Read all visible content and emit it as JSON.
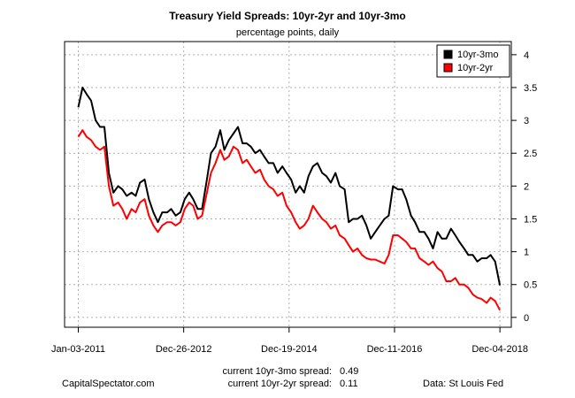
{
  "chart_data": {
    "type": "line",
    "title": "Treasury Yield Spreads: 10yr-2yr and 10yr-3mo",
    "subtitle": "percentage points, daily",
    "xlabel": "",
    "ylabel": "",
    "x_tick_labels": [
      "Jan-03-2011",
      "Dec-26-2012",
      "Dec-19-2014",
      "Dec-11-2016",
      "Dec-04-2018"
    ],
    "y_ticks": [
      0,
      0.5,
      1,
      1.5,
      2,
      2.5,
      3,
      3.5,
      4
    ],
    "y_tick_labels": [
      "0",
      "0.5",
      "1",
      "1.5",
      "2",
      "2.5",
      "3",
      "3.5",
      "4"
    ],
    "xlim": [
      "2010-10-01",
      "2019-02-20"
    ],
    "ylim": [
      -0.15,
      4.2
    ],
    "y_axis_side": "right",
    "grid": true,
    "legend_position": "top-right",
    "series": [
      {
        "name": "10yr-3mo",
        "color": "#000000",
        "x": [
          "2011-01-03",
          "2011-02-01",
          "2011-03-01",
          "2011-04-01",
          "2011-05-02",
          "2011-06-01",
          "2011-07-01",
          "2011-08-01",
          "2011-09-01",
          "2011-10-03",
          "2011-11-01",
          "2011-12-01",
          "2012-01-03",
          "2012-02-01",
          "2012-03-01",
          "2012-04-02",
          "2012-05-01",
          "2012-06-01",
          "2012-07-02",
          "2012-08-01",
          "2012-09-04",
          "2012-10-01",
          "2012-11-01",
          "2012-12-03",
          "2013-01-02",
          "2013-02-01",
          "2013-03-01",
          "2013-04-01",
          "2013-05-01",
          "2013-06-03",
          "2013-07-01",
          "2013-08-01",
          "2013-09-03",
          "2013-10-01",
          "2013-11-01",
          "2013-12-02",
          "2014-01-02",
          "2014-02-03",
          "2014-03-03",
          "2014-04-01",
          "2014-05-01",
          "2014-06-02",
          "2014-07-01",
          "2014-08-01",
          "2014-09-02",
          "2014-10-01",
          "2014-11-03",
          "2014-12-01",
          "2015-01-02",
          "2015-02-02",
          "2015-03-02",
          "2015-04-01",
          "2015-05-01",
          "2015-06-01",
          "2015-07-01",
          "2015-08-03",
          "2015-09-01",
          "2015-10-01",
          "2015-11-02",
          "2015-12-01",
          "2016-01-04",
          "2016-02-01",
          "2016-03-01",
          "2016-04-01",
          "2016-05-02",
          "2016-06-01",
          "2016-07-01",
          "2016-08-01",
          "2016-09-01",
          "2016-10-03",
          "2016-11-01",
          "2016-12-01",
          "2017-01-03",
          "2017-02-01",
          "2017-03-01",
          "2017-04-03",
          "2017-05-01",
          "2017-06-01",
          "2017-07-03",
          "2017-08-01",
          "2017-09-01",
          "2017-10-02",
          "2017-11-01",
          "2017-12-01",
          "2018-01-02",
          "2018-02-01",
          "2018-03-01",
          "2018-04-02",
          "2018-05-01",
          "2018-06-01",
          "2018-07-02",
          "2018-08-01",
          "2018-09-04",
          "2018-10-01",
          "2018-11-01",
          "2018-12-04"
        ],
        "y": [
          3.2,
          3.5,
          3.4,
          3.3,
          3.0,
          2.9,
          2.9,
          2.2,
          1.9,
          2.0,
          1.95,
          1.85,
          1.9,
          1.85,
          2.05,
          2.1,
          1.8,
          1.6,
          1.45,
          1.6,
          1.6,
          1.65,
          1.55,
          1.6,
          1.8,
          1.9,
          1.8,
          1.65,
          1.65,
          2.1,
          2.5,
          2.6,
          2.85,
          2.55,
          2.7,
          2.8,
          2.9,
          2.65,
          2.65,
          2.6,
          2.5,
          2.55,
          2.45,
          2.35,
          2.35,
          2.2,
          2.3,
          2.2,
          2.1,
          1.9,
          2.0,
          1.9,
          2.15,
          2.3,
          2.35,
          2.2,
          2.15,
          2.05,
          2.2,
          2.0,
          1.95,
          1.45,
          1.5,
          1.5,
          1.55,
          1.4,
          1.2,
          1.3,
          1.4,
          1.5,
          1.55,
          2.0,
          1.95,
          1.95,
          1.8,
          1.55,
          1.45,
          1.3,
          1.3,
          1.2,
          1.05,
          1.3,
          1.2,
          1.2,
          1.35,
          1.25,
          1.15,
          1.05,
          0.95,
          0.95,
          0.85,
          0.9,
          0.9,
          0.95,
          0.85,
          0.49
        ]
      },
      {
        "name": "10yr-2yr",
        "color": "#ff0000",
        "x": [
          "2011-01-03",
          "2011-02-01",
          "2011-03-01",
          "2011-04-01",
          "2011-05-02",
          "2011-06-01",
          "2011-07-01",
          "2011-08-01",
          "2011-09-01",
          "2011-10-03",
          "2011-11-01",
          "2011-12-01",
          "2012-01-03",
          "2012-02-01",
          "2012-03-01",
          "2012-04-02",
          "2012-05-01",
          "2012-06-01",
          "2012-07-02",
          "2012-08-01",
          "2012-09-04",
          "2012-10-01",
          "2012-11-01",
          "2012-12-03",
          "2013-01-02",
          "2013-02-01",
          "2013-03-01",
          "2013-04-01",
          "2013-05-01",
          "2013-06-03",
          "2013-07-01",
          "2013-08-01",
          "2013-09-03",
          "2013-10-01",
          "2013-11-01",
          "2013-12-02",
          "2014-01-02",
          "2014-02-03",
          "2014-03-03",
          "2014-04-01",
          "2014-05-01",
          "2014-06-02",
          "2014-07-01",
          "2014-08-01",
          "2014-09-02",
          "2014-10-01",
          "2014-11-03",
          "2014-12-01",
          "2015-01-02",
          "2015-02-02",
          "2015-03-02",
          "2015-04-01",
          "2015-05-01",
          "2015-06-01",
          "2015-07-01",
          "2015-08-03",
          "2015-09-01",
          "2015-10-01",
          "2015-11-02",
          "2015-12-01",
          "2016-01-04",
          "2016-02-01",
          "2016-03-01",
          "2016-04-01",
          "2016-05-02",
          "2016-06-01",
          "2016-07-01",
          "2016-08-01",
          "2016-09-01",
          "2016-10-03",
          "2016-11-01",
          "2016-12-01",
          "2017-01-03",
          "2017-02-01",
          "2017-03-01",
          "2017-04-03",
          "2017-05-01",
          "2017-06-01",
          "2017-07-03",
          "2017-08-01",
          "2017-09-01",
          "2017-10-02",
          "2017-11-01",
          "2017-12-01",
          "2018-01-02",
          "2018-02-01",
          "2018-03-01",
          "2018-04-02",
          "2018-05-01",
          "2018-06-01",
          "2018-07-02",
          "2018-08-01",
          "2018-09-04",
          "2018-10-01",
          "2018-11-01",
          "2018-12-04"
        ],
        "y": [
          2.75,
          2.85,
          2.75,
          2.7,
          2.6,
          2.55,
          2.6,
          2.0,
          1.7,
          1.75,
          1.65,
          1.5,
          1.65,
          1.6,
          1.75,
          1.8,
          1.55,
          1.4,
          1.3,
          1.4,
          1.45,
          1.45,
          1.4,
          1.45,
          1.65,
          1.75,
          1.7,
          1.5,
          1.55,
          1.9,
          2.2,
          2.35,
          2.55,
          2.4,
          2.45,
          2.6,
          2.55,
          2.35,
          2.4,
          2.3,
          2.2,
          2.25,
          2.1,
          2.0,
          1.95,
          1.85,
          1.9,
          1.7,
          1.6,
          1.45,
          1.35,
          1.4,
          1.5,
          1.7,
          1.6,
          1.5,
          1.45,
          1.35,
          1.4,
          1.25,
          1.2,
          1.1,
          1.0,
          1.05,
          0.95,
          0.9,
          0.88,
          0.88,
          0.85,
          0.82,
          0.95,
          1.25,
          1.25,
          1.2,
          1.15,
          1.05,
          1.05,
          0.9,
          0.85,
          0.8,
          0.85,
          0.75,
          0.7,
          0.55,
          0.55,
          0.6,
          0.5,
          0.5,
          0.45,
          0.35,
          0.3,
          0.28,
          0.22,
          0.3,
          0.25,
          0.11
        ]
      }
    ]
  },
  "stats": {
    "spread_3mo_label": "current 10yr-3mo spread:",
    "spread_3mo_value": "0.49",
    "spread_2yr_label": "current 10yr-2yr spread:",
    "spread_2yr_value": "0.11"
  },
  "credits": {
    "left": "CapitalSpectator.com",
    "right": "Data: St Louis Fed"
  }
}
